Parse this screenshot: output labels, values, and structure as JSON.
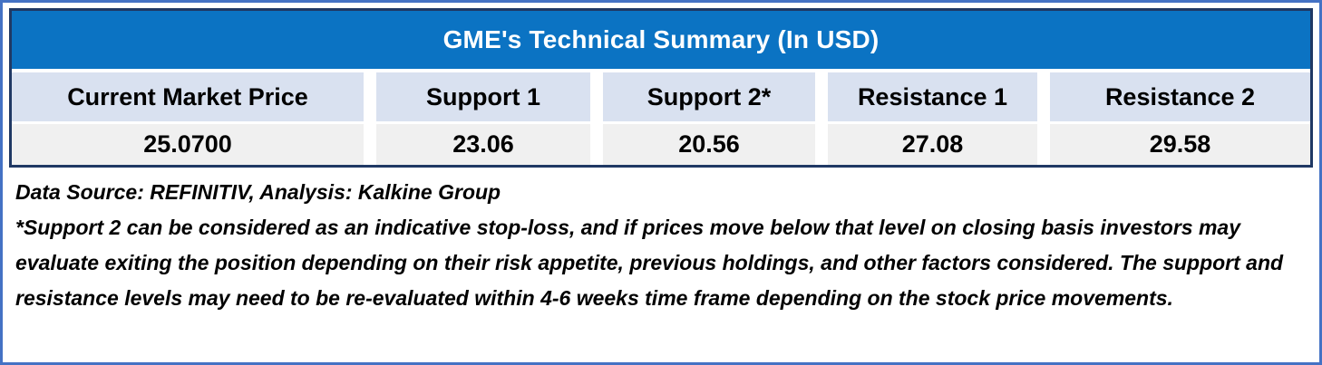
{
  "chart_data": {
    "type": "table",
    "title": "GME's Technical Summary (In USD)",
    "columns": [
      "Current Market Price",
      "Support 1",
      "Support 2*",
      "Resistance 1",
      "Resistance 2"
    ],
    "rows": [
      [
        "25.0700",
        "23.06",
        "20.56",
        "27.08",
        "29.58"
      ]
    ],
    "layout_hints": {
      "title_position": "top-band",
      "grid": "off",
      "column_separators": "white-gaps"
    }
  },
  "footnotes": {
    "source_line": "Data Source: REFINITIV, Analysis: Kalkine Group",
    "disclaimer": "*Support 2 can be considered as an indicative stop-loss, and if prices move below that level on closing basis investors may evaluate exiting the position depending on their risk appetite, previous holdings, and other factors considered. The support and resistance levels may need to be re-evaluated within 4-6 weeks time frame depending on the stock price movements."
  },
  "colors": {
    "title_band": "#0B73C3",
    "header_row": "#D9E1F0",
    "value_row": "#F0F0F0",
    "table_border": "#1F3864",
    "outer_frame": "#4472C4",
    "title_text": "#FFFFFF",
    "body_text": "#000000"
  }
}
